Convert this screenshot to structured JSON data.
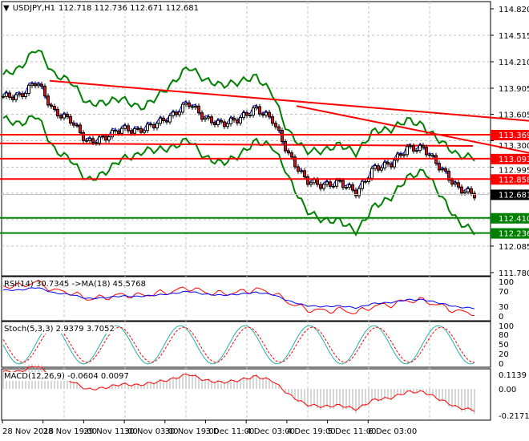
{
  "header": {
    "symbol": "USDJPY,H1",
    "ohlc": "112.718 112.736 112.671 112.681"
  },
  "price_axis": [
    "114.820",
    "114.515",
    "114.210",
    "113.905",
    "113.605",
    "113.300",
    "112.995",
    "112.085",
    "111.780"
  ],
  "levels": [
    {
      "label": "113.369",
      "value": 113.369,
      "color": "#ff0000"
    },
    {
      "label": "113.093",
      "value": 113.093,
      "color": "#ff0000"
    },
    {
      "label": "112.858",
      "value": 112.858,
      "color": "#ff0000"
    },
    {
      "label": "112.410",
      "value": 112.41,
      "color": "#008000"
    },
    {
      "label": "112.236",
      "value": 112.236,
      "color": "#008000"
    }
  ],
  "current_price": {
    "label": "112.681",
    "value": 112.681
  },
  "price_path": [
    113.81,
    113.81,
    113.99,
    113.63,
    113.54,
    113.28,
    113.33,
    113.44,
    113.41,
    113.49,
    113.58,
    113.74,
    113.55,
    113.49,
    113.55,
    113.67,
    113.54,
    113.12,
    112.84,
    112.78,
    112.82,
    112.7,
    112.98,
    113.03,
    113.21,
    113.21,
    112.98,
    112.75,
    112.68
  ],
  "rsi": {
    "label": "RSI(14) 30.7345  ->MA(18) 45.5768",
    "ticks": [
      "100",
      "70",
      "30",
      "0"
    ]
  },
  "stoch": {
    "label": "Stoch(5,3,3) 2.9379 3.7052",
    "ticks": [
      "100",
      "80",
      "50",
      "20",
      "0"
    ]
  },
  "macd": {
    "label": "MACD(12,26,9) -0.0604 0.0097",
    "ticks": [
      "0.1139",
      "0.00",
      "-0.2171"
    ]
  },
  "time_axis": [
    "28 Nov 2018",
    "28 Nov 19:00",
    "29 Nov 11:00",
    "30 Nov 03:00",
    "30 Nov 19:00",
    "3 Dec 11:00",
    "4 Dec 03:00",
    "4 Dec 19:00",
    "5 Dec 11:00",
    "6 Dec 03:00"
  ],
  "colors": {
    "bull": "#000000",
    "bear": "#ff0000",
    "bands": "#008000",
    "rsi": "#ff0000",
    "rsi_ma": "#0000ff",
    "stoch_main": "#20b2aa",
    "stoch_signal": "#ff0000",
    "macd_signal": "#ff0000",
    "macd_hist": "#b0b0b0"
  }
}
